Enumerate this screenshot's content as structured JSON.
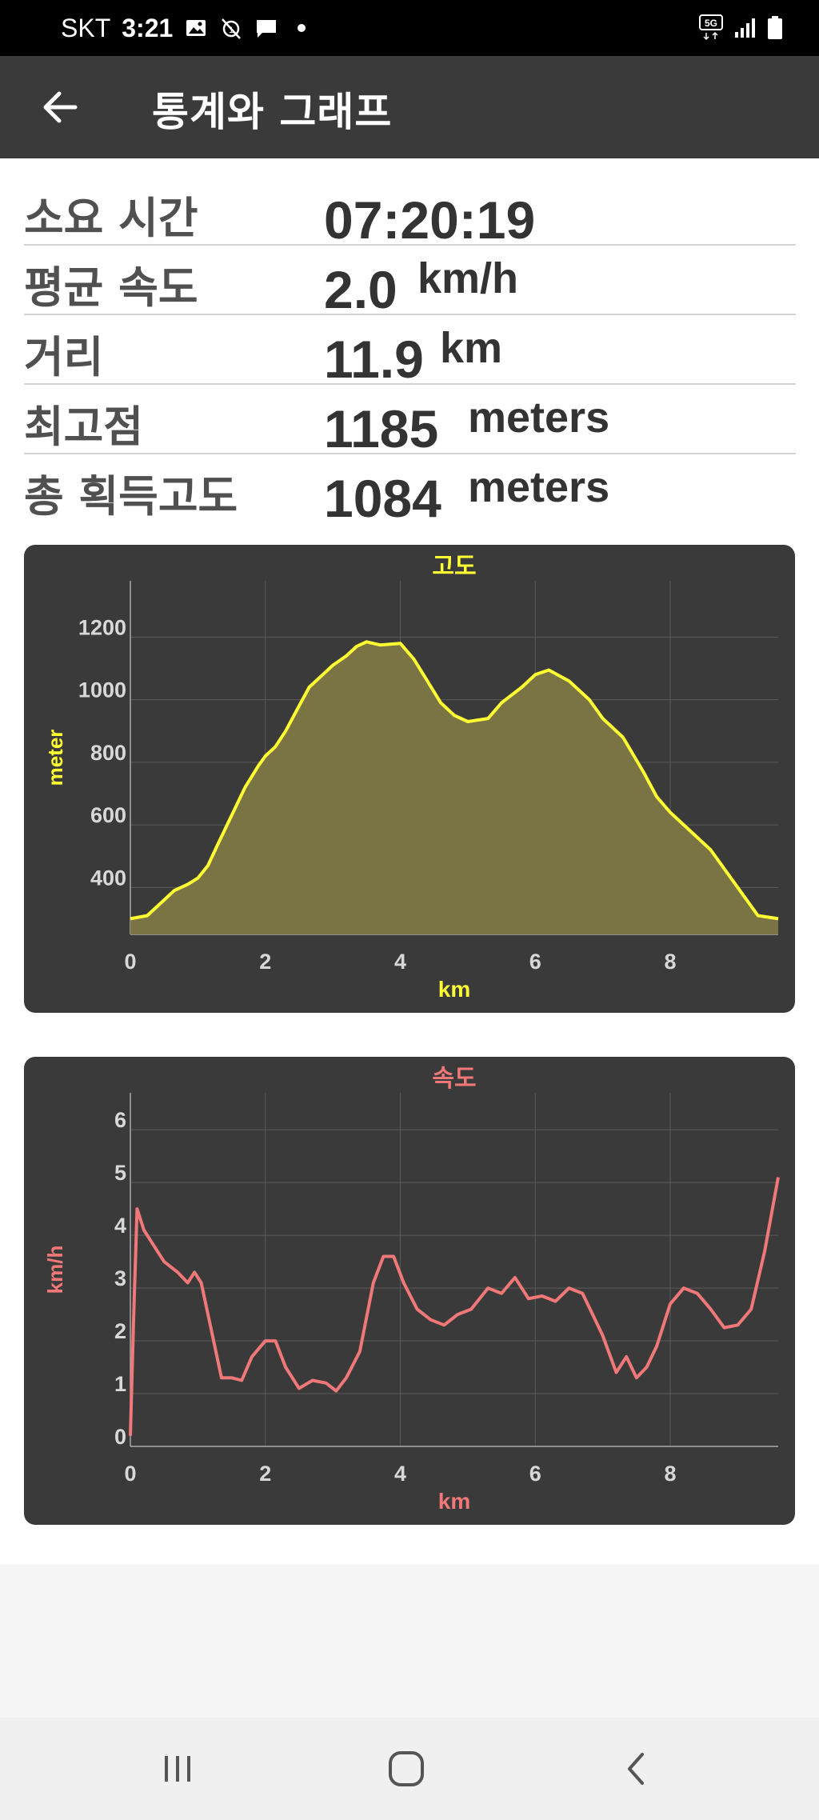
{
  "status_bar": {
    "carrier": "SKT",
    "time": "3:21",
    "network": "5G"
  },
  "app_bar": {
    "title": "통계와 그래프",
    "back_icon": "arrow-left-icon"
  },
  "stats": [
    {
      "label": "소요 시간",
      "value": "07:20:19",
      "unit": ""
    },
    {
      "label": "평균 속도",
      "value": "2.0",
      "unit": "km/h"
    },
    {
      "label": "거리",
      "value": "11.9",
      "unit": "km"
    },
    {
      "label": "최고점",
      "value": "1185",
      "unit": "meters"
    },
    {
      "label": "총 획득고도",
      "value": "1084",
      "unit": "meters"
    }
  ],
  "chart_data": [
    {
      "type": "area",
      "title": "고도",
      "xlabel": "km",
      "ylabel": "meter",
      "color": "#ffff33",
      "fill": "#7a7444",
      "xlim": [
        0,
        9.6
      ],
      "ylim": [
        250,
        1380
      ],
      "xticks": [
        0,
        2,
        4,
        6,
        8
      ],
      "yticks": [
        400,
        600,
        800,
        1000,
        1200
      ],
      "grid": true,
      "x": [
        0,
        0.25,
        0.5,
        0.65,
        0.85,
        1.0,
        1.15,
        1.3,
        1.5,
        1.7,
        1.9,
        2.0,
        2.15,
        2.3,
        2.5,
        2.65,
        2.85,
        3.0,
        3.2,
        3.35,
        3.5,
        3.7,
        4.0,
        4.2,
        4.4,
        4.6,
        4.8,
        5.0,
        5.3,
        5.5,
        5.8,
        6.0,
        6.2,
        6.5,
        6.8,
        7.0,
        7.3,
        7.6,
        7.8,
        8.0,
        8.3,
        8.6,
        8.9,
        9.1,
        9.3,
        9.6
      ],
      "y": [
        300,
        310,
        360,
        390,
        410,
        430,
        470,
        540,
        630,
        720,
        790,
        820,
        850,
        900,
        980,
        1040,
        1080,
        1110,
        1140,
        1170,
        1185,
        1175,
        1180,
        1130,
        1060,
        990,
        950,
        930,
        940,
        990,
        1040,
        1080,
        1095,
        1060,
        1000,
        940,
        880,
        770,
        690,
        640,
        580,
        520,
        430,
        370,
        310,
        300
      ]
    },
    {
      "type": "line",
      "title": "속도",
      "xlabel": "km",
      "ylabel": "km/h",
      "color": "#f07878",
      "xlim": [
        0,
        9.6
      ],
      "ylim": [
        0,
        6.7
      ],
      "xticks": [
        0,
        2,
        4,
        6,
        8
      ],
      "yticks": [
        0,
        1,
        2,
        3,
        4,
        5,
        6
      ],
      "grid": true,
      "x": [
        0,
        0.05,
        0.1,
        0.2,
        0.35,
        0.5,
        0.7,
        0.85,
        0.95,
        1.05,
        1.2,
        1.35,
        1.5,
        1.65,
        1.8,
        2.0,
        2.15,
        2.3,
        2.5,
        2.7,
        2.9,
        3.05,
        3.2,
        3.4,
        3.6,
        3.75,
        3.9,
        4.05,
        4.25,
        4.45,
        4.65,
        4.85,
        5.05,
        5.3,
        5.5,
        5.7,
        5.9,
        6.1,
        6.3,
        6.5,
        6.7,
        6.85,
        7.0,
        7.2,
        7.35,
        7.5,
        7.65,
        7.8,
        8.0,
        8.2,
        8.4,
        8.6,
        8.8,
        9.0,
        9.2,
        9.4,
        9.6
      ],
      "y": [
        0.2,
        2.5,
        4.5,
        4.1,
        3.8,
        3.5,
        3.3,
        3.1,
        3.3,
        3.1,
        2.2,
        1.3,
        1.3,
        1.25,
        1.7,
        2.0,
        2.0,
        1.5,
        1.1,
        1.25,
        1.2,
        1.05,
        1.3,
        1.8,
        3.1,
        3.6,
        3.6,
        3.1,
        2.6,
        2.4,
        2.3,
        2.5,
        2.6,
        3.0,
        2.9,
        3.2,
        2.8,
        2.85,
        2.75,
        3.0,
        2.9,
        2.5,
        2.1,
        1.4,
        1.7,
        1.3,
        1.5,
        1.9,
        2.7,
        3.0,
        2.9,
        2.6,
        2.25,
        2.3,
        2.6,
        3.7,
        5.1
      ]
    }
  ]
}
